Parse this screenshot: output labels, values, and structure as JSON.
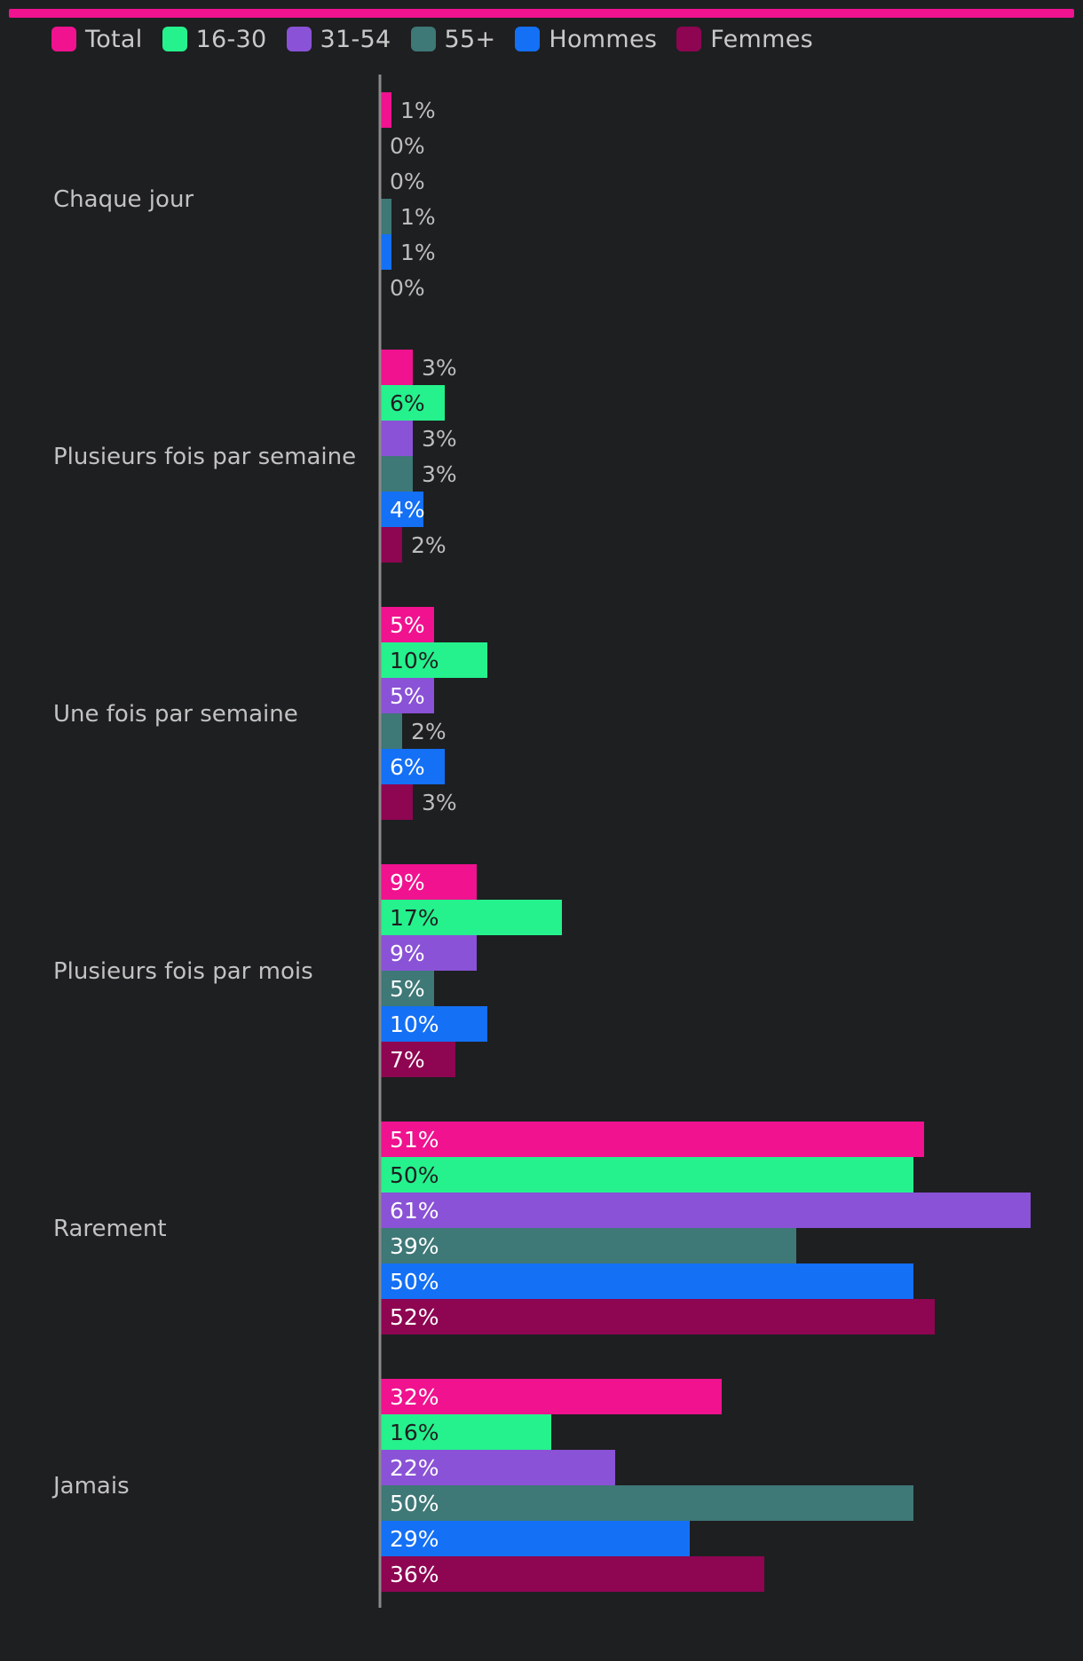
{
  "colors": {
    "accent_bar": "#f0128f",
    "background": "#1e1f21",
    "axis": "#8a8a8a",
    "label_outside": "#bdbdbd",
    "label_inside_light": "#ffffff",
    "label_inside_dark": "#1e1f21"
  },
  "chart_data": {
    "type": "bar",
    "orientation": "horizontal",
    "title": "",
    "xlabel": "",
    "ylabel": "",
    "xlim": [
      0,
      61
    ],
    "grid": false,
    "legend_position": "top-left",
    "value_suffix": "%",
    "categories": [
      "Chaque jour",
      "Plusieurs fois par semaine",
      "Une fois par semaine",
      "Plusieurs fois par mois",
      "Rarement",
      "Jamais"
    ],
    "series": [
      {
        "name": "Total",
        "color": "#f0128f",
        "label_color": "light",
        "values": [
          1,
          3,
          5,
          9,
          51,
          32
        ]
      },
      {
        "name": "16-30",
        "color": "#25f28d",
        "label_color": "dark",
        "values": [
          0,
          6,
          10,
          17,
          50,
          16
        ]
      },
      {
        "name": "31-54",
        "color": "#8a52d6",
        "label_color": "light",
        "values": [
          0,
          3,
          5,
          9,
          61,
          22
        ]
      },
      {
        "name": "55+",
        "color": "#3e7877",
        "label_color": "light",
        "values": [
          1,
          3,
          2,
          5,
          39,
          50
        ]
      },
      {
        "name": "Hommes",
        "color": "#1470f5",
        "label_color": "light",
        "values": [
          1,
          4,
          6,
          10,
          50,
          29
        ]
      },
      {
        "name": "Femmes",
        "color": "#8e0552",
        "label_color": "light",
        "values": [
          0,
          2,
          3,
          7,
          52,
          36
        ]
      }
    ]
  }
}
